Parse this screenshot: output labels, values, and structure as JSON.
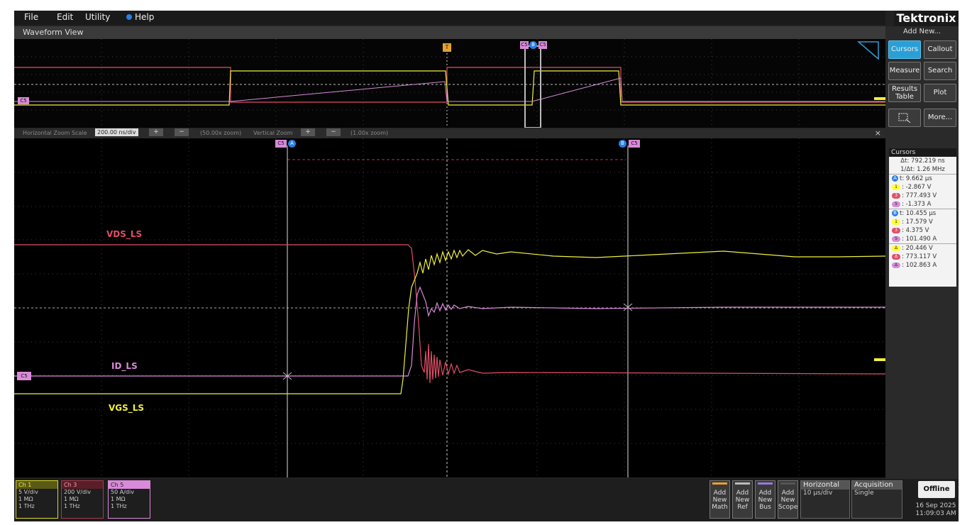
{
  "menu": {
    "file": "File",
    "edit": "Edit",
    "utility": "Utility",
    "help": "Help"
  },
  "brand": "Tektronix",
  "waveform_view": {
    "title": "Waveform View"
  },
  "zoom": {
    "h_label": "Horizontal Zoom Scale",
    "h_value": "200.00 ns/div",
    "h_zoom": "(50.00x zoom)",
    "v_label": "Vertical Zoom",
    "v_zoom": "(1.00x zoom)",
    "plus": "+",
    "minus": "−",
    "close": "×"
  },
  "markers": {
    "trigger": "T",
    "c5": "C5",
    "a": "A",
    "b": "B"
  },
  "traces": {
    "vds": "VDS_LS",
    "id": "ID_LS",
    "vgs": "VGS_LS"
  },
  "sidebar": {
    "add_new": "Add New...",
    "buttons": {
      "cursors": "Cursors",
      "callout": "Callout",
      "measure": "Measure",
      "search": "Search",
      "results_1": "Results",
      "results_2": "Table",
      "plot": "Plot",
      "more": "More..."
    }
  },
  "cursors": {
    "title": "Cursors",
    "dt": "Δt: 792.219 ns",
    "inv_dt": "1/Δt: 1.26 MHz",
    "a": {
      "t": "t: 9.662 μs",
      "ch1": ": -2.867 V",
      "ch3": ": 777.493 V",
      "ch5": ": -1.373 A"
    },
    "b": {
      "t": "t: 10.455 μs",
      "ch1": ": 17.579 V",
      "ch3": ": 4.375 V",
      "ch5": ": 101.490 A"
    },
    "delta": {
      "ch1": ": 20.446 V",
      "ch3": ": 773.117 V",
      "ch5": ": 102.863 A"
    },
    "badge1": "1",
    "badge3": "3",
    "badge5": "5",
    "badgeD": "Δ"
  },
  "channels": [
    {
      "name": "Ch 1",
      "scale": "5 V/div",
      "imp": "1 MΩ",
      "bw": "1 THz",
      "color": "#e8e83a"
    },
    {
      "name": "Ch 3",
      "scale": "200 V/div",
      "imp": "1 MΩ",
      "bw": "1 THz",
      "color": "#e0506a"
    },
    {
      "name": "Ch 5",
      "scale": "50 A/div",
      "imp": "1 MΩ",
      "bw": "1 THz",
      "color": "#d28fd6"
    }
  ],
  "add_buttons": [
    {
      "l1": "Add",
      "l2": "New",
      "l3": "Math",
      "color": "#e8a030"
    },
    {
      "l1": "Add",
      "l2": "New",
      "l3": "Ref",
      "color": "#bbbbbb"
    },
    {
      "l1": "Add",
      "l2": "New",
      "l3": "Bus",
      "color": "#9a7ad8"
    },
    {
      "l1": "Add",
      "l2": "New",
      "l3": "Scope",
      "color": "#555555"
    }
  ],
  "horizontal": {
    "title": "Horizontal",
    "value": "10 μs/div"
  },
  "acquisition": {
    "title": "Acquisition",
    "value": "Single"
  },
  "offline": "Offline",
  "date": "16 Sep 2025",
  "time": "11:09:03 AM",
  "colors": {
    "ch1": "#f0f03c",
    "ch3": "#e24d66",
    "ch5": "#d98ad9",
    "accent": "#2a9fd6"
  }
}
